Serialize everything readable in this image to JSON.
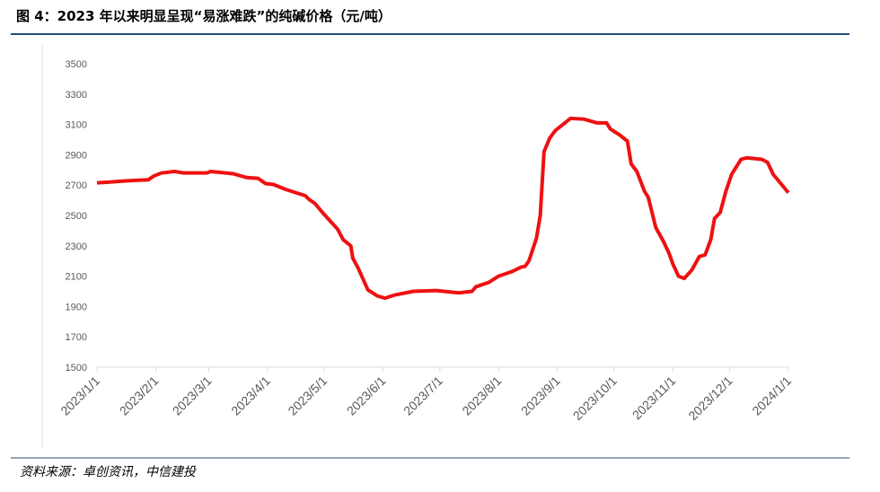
{
  "header": {
    "title": "图 4：2023 年以来明显呈现“易涨难跌”的纯碱价格（元/吨）"
  },
  "chart_data": {
    "type": "line",
    "x": [
      "2023/1/1",
      "2023/1/7",
      "2023/1/19",
      "2023/1/28",
      "2023/1/31",
      "2023/2/4",
      "2023/2/11",
      "2023/2/16",
      "2023/2/28",
      "2023/3/2",
      "2023/3/14",
      "2023/3/21",
      "2023/3/27",
      "2023/3/31",
      "2023/4/4",
      "2023/4/11",
      "2023/4/21",
      "2023/4/23",
      "2023/4/26",
      "2023/4/30",
      "2023/5/8",
      "2023/5/11",
      "2023/5/15",
      "2023/5/16",
      "2023/5/19",
      "2023/5/24",
      "2023/5/29",
      "2023/6/2",
      "2023/6/7",
      "2023/6/17",
      "2023/6/29",
      "2023/7/11",
      "2023/7/18",
      "2023/7/20",
      "2023/7/27",
      "2023/8/1",
      "2023/8/8",
      "2023/8/13",
      "2023/8/15",
      "2023/8/17",
      "2023/8/21",
      "2023/8/23",
      "2023/8/25",
      "2023/8/28",
      "2023/8/31",
      "2023/9/3",
      "2023/9/8",
      "2023/9/15",
      "2023/9/22",
      "2023/9/27",
      "2023/9/29",
      "2023/10/4",
      "2023/10/8",
      "2023/10/10",
      "2023/10/13",
      "2023/10/17",
      "2023/10/19",
      "2023/10/23",
      "2023/10/27",
      "2023/10/30",
      "2023/11/1",
      "2023/11/4",
      "2023/11/7",
      "2023/11/11",
      "2023/11/15",
      "2023/11/18",
      "2023/11/21",
      "2023/11/23",
      "2023/11/26",
      "2023/11/29",
      "2023/12/2",
      "2023/12/7",
      "2023/12/10",
      "2023/12/18",
      "2023/12/21",
      "2023/12/24",
      "2023/12/28",
      "2024/1/1"
    ],
    "series": [
      {
        "color": "#ee1111",
        "values": [
          2715,
          2720,
          2730,
          2735,
          2760,
          2780,
          2790,
          2780,
          2780,
          2790,
          2775,
          2750,
          2745,
          2710,
          2705,
          2670,
          2630,
          2605,
          2580,
          2520,
          2410,
          2340,
          2300,
          2220,
          2150,
          2010,
          1970,
          1955,
          1975,
          2000,
          2005,
          1990,
          2000,
          2030,
          2060,
          2100,
          2130,
          2160,
          2165,
          2200,
          2350,
          2500,
          2920,
          3010,
          3060,
          3090,
          3140,
          3135,
          3110,
          3110,
          3070,
          3030,
          2990,
          2840,
          2790,
          2660,
          2620,
          2420,
          2330,
          2250,
          2180,
          2100,
          2085,
          2140,
          2230,
          2240,
          2340,
          2480,
          2520,
          2660,
          2770,
          2870,
          2880,
          2870,
          2850,
          2770,
          2710,
          2650
        ]
      }
    ],
    "xlim": [
      "2023/1/1",
      "2024/1/1"
    ],
    "xticks": [
      "2023/1/1",
      "2023/2/1",
      "2023/3/1",
      "2023/4/1",
      "2023/5/1",
      "2023/6/1",
      "2023/7/1",
      "2023/8/1",
      "2023/9/1",
      "2023/10/1",
      "2023/11/1",
      "2023/12/1",
      "2024/1/1"
    ],
    "ylim": [
      1500,
      3500
    ],
    "yticks": [
      1500,
      1700,
      1900,
      2100,
      2300,
      2500,
      2700,
      2900,
      3100,
      3300,
      3500
    ]
  },
  "footer": {
    "source": "资料来源：卓创资讯，中信建投"
  }
}
